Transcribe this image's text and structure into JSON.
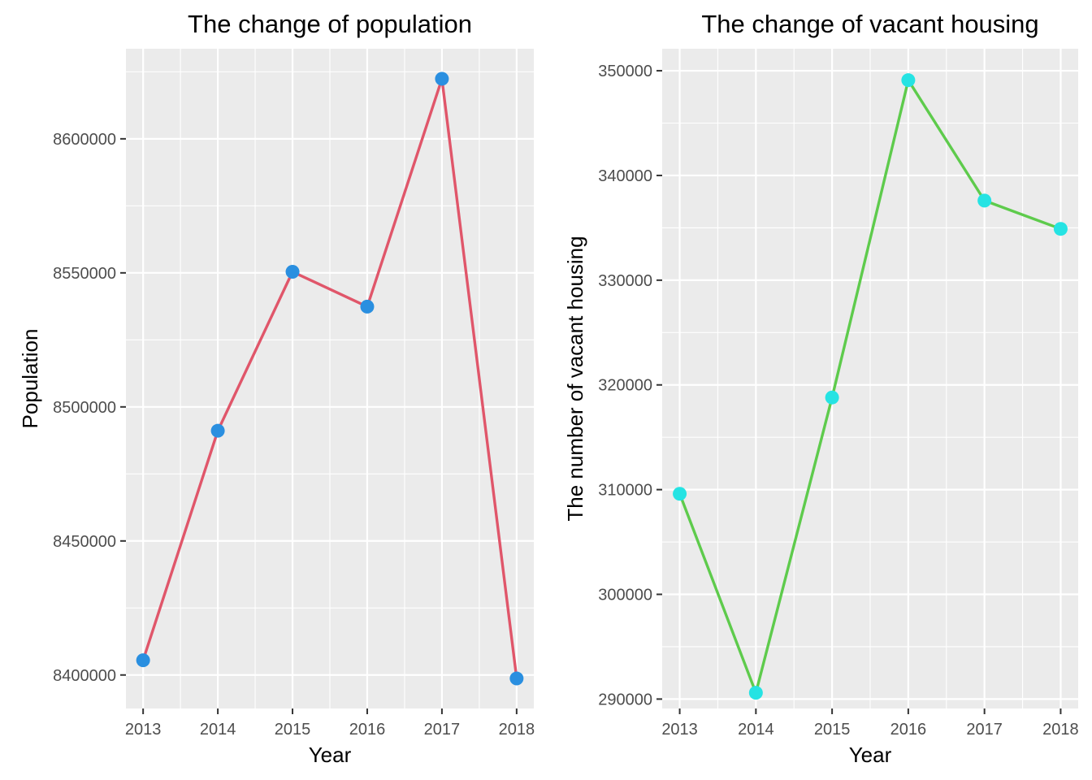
{
  "chart_data": [
    {
      "type": "line",
      "title": "The change of population",
      "xlabel": "Year",
      "ylabel": "Population",
      "x": [
        2013,
        2014,
        2015,
        2016,
        2017,
        2018
      ],
      "series": [
        {
          "values": [
            8405500,
            8491100,
            8550400,
            8537400,
            8622400,
            8398700
          ]
        }
      ],
      "xlim": [
        2012.77,
        2018.23
      ],
      "ylim": [
        8387500,
        8633600
      ],
      "y_ticks": [
        8400000,
        8450000,
        8500000,
        8550000,
        8600000
      ],
      "line_color": "#e0566a",
      "point_color": "#2a8fe0",
      "grid": true,
      "legend": "none"
    },
    {
      "type": "line",
      "title": "The change of  vacant housing",
      "xlabel": "Year",
      "ylabel": "The number of vacant housing",
      "x": [
        2013,
        2014,
        2015,
        2016,
        2017,
        2018
      ],
      "series": [
        {
          "values": [
            309600,
            290600,
            318800,
            349100,
            337600,
            334900
          ]
        }
      ],
      "xlim": [
        2012.77,
        2018.23
      ],
      "ylim": [
        289100,
        352100
      ],
      "y_ticks": [
        290000,
        300000,
        310000,
        320000,
        330000,
        340000,
        350000
      ],
      "line_color": "#5ecb4c",
      "point_color": "#25e3e3",
      "grid": true,
      "legend": "none"
    }
  ]
}
